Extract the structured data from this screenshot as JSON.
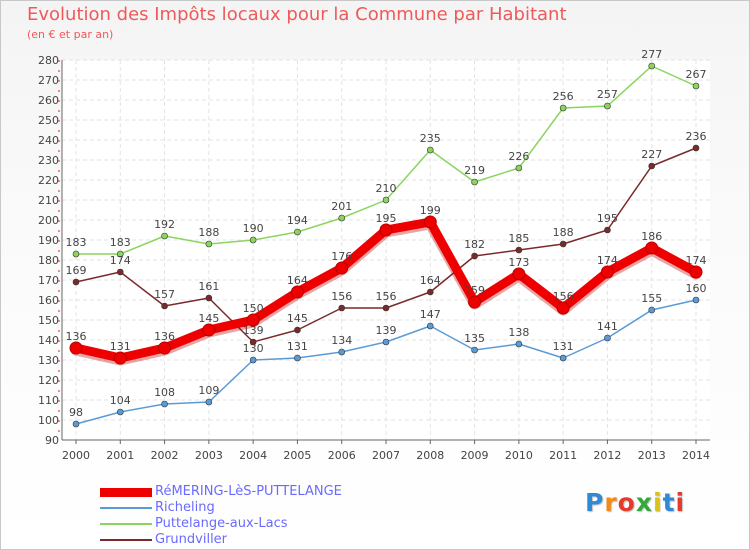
{
  "header": {
    "title": "Evolution des Impôts locaux pour la Commune par Habitant",
    "subtitle": "(en € et par an)"
  },
  "logo": {
    "text": "Proxiti",
    "colors": [
      "#2f8ad6",
      "#f08a1a",
      "#e33b2e",
      "#35a83a",
      "#d9c21a",
      "#2f8ad6",
      "#e33b2e"
    ]
  },
  "chart_data": {
    "type": "line",
    "title": "Evolution des Impôts locaux pour la Commune par Habitant",
    "subtitle": "(en € et par an)",
    "x": [
      "2000",
      "2001",
      "2002",
      "2003",
      "2004",
      "2005",
      "2006",
      "2007",
      "2008",
      "2009",
      "2010",
      "2011",
      "2012",
      "2013",
      "2014"
    ],
    "ylim": [
      90,
      280
    ],
    "yticks": [
      90,
      100,
      110,
      120,
      130,
      140,
      150,
      160,
      170,
      180,
      190,
      200,
      210,
      220,
      230,
      240,
      250,
      260,
      270,
      280
    ],
    "grid": true,
    "legend_position": "bottom-left",
    "series": [
      {
        "name": "RéMERING-LèS-PUTTELANGE",
        "color": "#ee0000",
        "bold": true,
        "values": [
          136,
          131,
          136,
          145,
          150,
          164,
          176,
          195,
          199,
          159,
          173,
          156,
          174,
          186,
          174
        ]
      },
      {
        "name": "Richeling",
        "color": "#5b9bd5",
        "bold": false,
        "values": [
          98,
          104,
          108,
          109,
          130,
          131,
          134,
          139,
          147,
          135,
          138,
          131,
          141,
          155,
          160
        ]
      },
      {
        "name": "Puttelange-aux-Lacs",
        "color": "#8bd45e",
        "bold": false,
        "values": [
          183,
          183,
          192,
          188,
          190,
          194,
          201,
          210,
          235,
          219,
          226,
          256,
          257,
          277,
          267
        ]
      },
      {
        "name": "Grundviller",
        "color": "#7a2a2a",
        "bold": false,
        "values": [
          169,
          174,
          157,
          161,
          139,
          145,
          156,
          156,
          164,
          182,
          185,
          188,
          195,
          227,
          236
        ]
      }
    ]
  }
}
